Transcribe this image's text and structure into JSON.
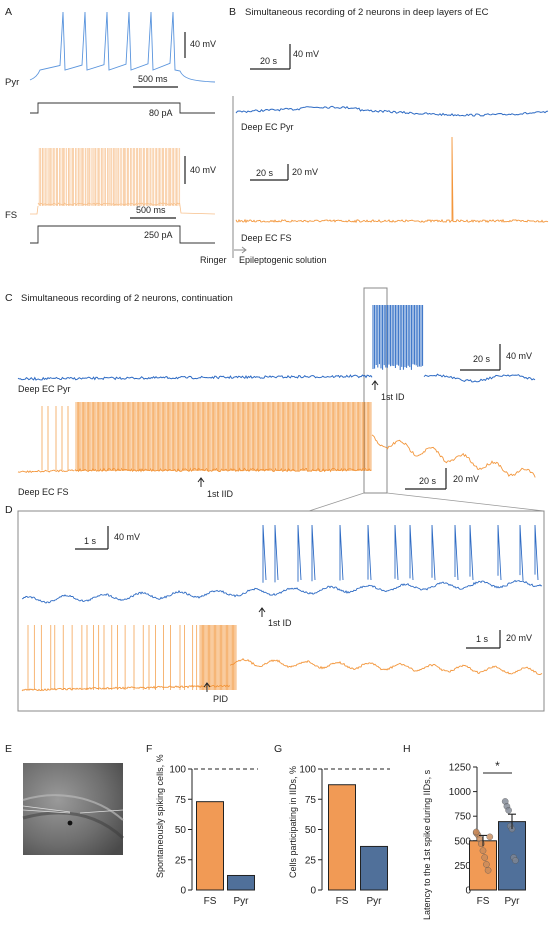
{
  "colors": {
    "pyr": "#2e6bc4",
    "pyr_light": "#5b95dd",
    "fs": "#f3973d",
    "fs_light": "#f7c08c",
    "bar_fs": "#f19a55",
    "bar_pyr": "#50709a",
    "text": "#222222"
  },
  "panelA": {
    "letter": "A",
    "pyr_label": "Pyr",
    "fs_label": "FS",
    "pyr_scale_v": "40 mV",
    "pyr_scale_t": "500 ms",
    "pyr_step": "80 pA",
    "fs_scale_v": "40 mV",
    "fs_scale_t": "500 ms",
    "fs_step": "250 pA"
  },
  "panelB": {
    "letter": "B",
    "title": "Simultaneous recording of 2 neurons in deep layers of EC",
    "pyr_scale_t": "20 s",
    "pyr_scale_v": "40 mV",
    "fs_scale_t": "20 s",
    "fs_scale_v": "20 mV",
    "pyr_trace_label": "Deep EC Pyr",
    "fs_trace_label": "Deep EC FS",
    "ringer": "Ringer",
    "epileptogenic": "Epileptogenic solution"
  },
  "panelC": {
    "letter": "C",
    "title": "Simultaneous recording of 2 neurons, continuation",
    "pyr_label": "Deep EC Pyr",
    "fs_label": "Deep EC FS",
    "first_id": "1st ID",
    "first_iid": "1st IID",
    "pyr_scale_t": "20 s",
    "pyr_scale_v": "40 mV",
    "fs_scale_t": "20 s",
    "fs_scale_v": "20 mV"
  },
  "panelD": {
    "letter": "D",
    "pyr_scale_t": "1 s",
    "pyr_scale_v": "40 mV",
    "first_id": "1st ID",
    "fs_scale_t": "1 s",
    "fs_scale_v": "20 mV",
    "pid": "PID"
  },
  "panelE": {
    "letter": "E"
  },
  "chart_data": [
    {
      "panel": "F",
      "type": "bar",
      "ylabel": "Spontaneously spiking cells, %",
      "categories": [
        "FS",
        "Pyr"
      ],
      "values": [
        73,
        12
      ],
      "ylim": [
        0,
        100
      ],
      "yticks": [
        "0",
        "25",
        "50",
        "75",
        "100"
      ],
      "reference_line": 100
    },
    {
      "panel": "G",
      "type": "bar",
      "ylabel": "Cells participating in IIDs, %",
      "categories": [
        "FS",
        "Pyr"
      ],
      "values": [
        87,
        36
      ],
      "ylim": [
        0,
        100
      ],
      "yticks": [
        "0",
        "25",
        "50",
        "75",
        "100"
      ],
      "reference_line": 100
    },
    {
      "panel": "H",
      "type": "bar",
      "ylabel": "Latency to the 1st spike during IIDs, s",
      "categories": [
        "FS",
        "Pyr"
      ],
      "values": [
        500,
        695
      ],
      "errors": [
        55,
        75
      ],
      "ylim": [
        0,
        1250
      ],
      "yticks": [
        "0",
        "250",
        "500",
        "750",
        "1000",
        "1250"
      ],
      "significance": "*",
      "points": [
        [
          580,
          560,
          520,
          470,
          400,
          330,
          260,
          200,
          540,
          590
        ],
        [
          900,
          850,
          810,
          650,
          620,
          330,
          300
        ]
      ]
    }
  ]
}
